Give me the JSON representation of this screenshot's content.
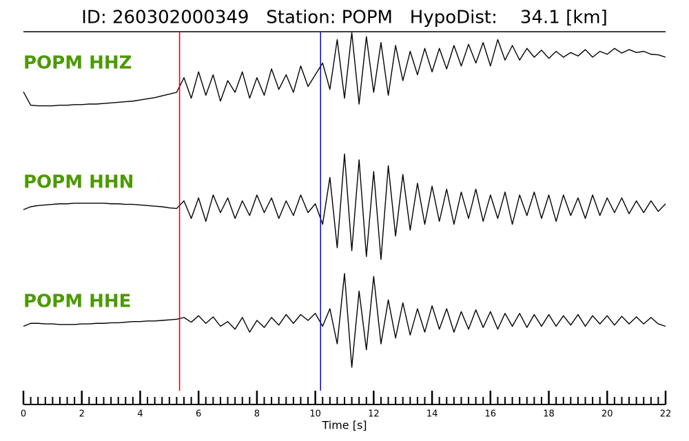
{
  "chart_data": {
    "type": "seismogram",
    "title": "ID: 260302000349   Station: POPM   HypoDist:    34.1 [km]",
    "xlabel": "Time [s]",
    "xlim": [
      0,
      22
    ],
    "xticks": [
      0,
      2,
      4,
      6,
      8,
      10,
      12,
      14,
      16,
      18,
      20,
      22
    ],
    "minor_xticks": [
      0,
      0.25,
      0.5,
      0.75,
      1,
      1.25,
      1.5,
      1.75,
      2,
      2.25,
      2.5,
      2.75,
      3,
      3.25,
      3.5,
      3.75,
      4,
      4.25,
      4.5,
      4.75,
      5,
      5.25,
      5.5,
      5.75,
      6,
      6.25,
      6.5,
      6.75,
      7,
      7.25,
      7.5,
      7.75,
      8,
      8.25,
      8.5,
      8.75,
      9,
      9.25,
      9.5,
      9.75,
      10,
      10.25,
      10.5,
      10.75,
      11,
      11.25,
      11.5,
      11.75,
      12,
      12.25,
      12.5,
      12.75,
      13,
      13.25,
      13.5,
      13.75,
      14,
      14.25,
      14.5,
      14.75,
      15,
      15.25,
      15.5,
      15.75,
      16,
      16.25,
      16.5,
      16.75,
      17,
      17.25,
      17.5,
      17.75,
      18,
      18.25,
      18.5,
      18.75,
      19,
      19.25,
      19.5,
      19.75,
      20,
      20.25,
      20.5,
      20.75,
      21,
      21.25,
      21.5,
      21.75,
      22
    ],
    "x": [
      0,
      0.25,
      0.5,
      0.75,
      1,
      1.25,
      1.5,
      1.75,
      2,
      2.25,
      2.5,
      2.75,
      3,
      3.25,
      3.5,
      3.75,
      4,
      4.25,
      4.5,
      4.75,
      5,
      5.25,
      5.5,
      5.75,
      6,
      6.25,
      6.5,
      6.75,
      7,
      7.25,
      7.5,
      7.75,
      8,
      8.25,
      8.5,
      8.75,
      9,
      9.25,
      9.5,
      9.75,
      10,
      10.25,
      10.5,
      10.75,
      11,
      11.25,
      11.5,
      11.75,
      12,
      12.25,
      12.5,
      12.75,
      13,
      13.25,
      13.5,
      13.75,
      14,
      14.25,
      14.5,
      14.75,
      15,
      15.25,
      15.5,
      15.75,
      16,
      16.25,
      16.5,
      16.75,
      17,
      17.25,
      17.5,
      17.75,
      18,
      18.25,
      18.5,
      18.75,
      19,
      19.25,
      19.5,
      19.75,
      20,
      20.25,
      20.5,
      20.75,
      21,
      21.25,
      21.5,
      21.75,
      22
    ],
    "ylim": [
      -1,
      1
    ],
    "label_color": "#4c9a00",
    "series": [
      {
        "name": "POPM HHZ",
        "color": "#000000",
        "values": [
          -0.39,
          -0.62,
          -0.63,
          -0.63,
          -0.63,
          -0.62,
          -0.62,
          -0.61,
          -0.61,
          -0.6,
          -0.6,
          -0.59,
          -0.58,
          -0.57,
          -0.56,
          -0.55,
          -0.53,
          -0.51,
          -0.49,
          -0.46,
          -0.43,
          -0.4,
          -0.15,
          -0.5,
          -0.05,
          -0.45,
          -0.1,
          -0.55,
          -0.2,
          -0.4,
          -0.05,
          -0.5,
          -0.15,
          -0.45,
          0.0,
          -0.35,
          -0.1,
          -0.4,
          0.05,
          -0.3,
          -0.1,
          0.1,
          -0.35,
          0.5,
          -0.5,
          0.62,
          -0.6,
          0.55,
          -0.4,
          0.45,
          -0.45,
          0.4,
          -0.2,
          0.3,
          -0.1,
          0.35,
          -0.05,
          0.35,
          0.0,
          0.4,
          0.05,
          0.42,
          0.1,
          0.45,
          0.05,
          0.5,
          0.15,
          0.4,
          0.15,
          0.35,
          0.2,
          0.32,
          0.18,
          0.3,
          0.2,
          0.28,
          0.22,
          0.33,
          0.2,
          0.3,
          0.25,
          0.35,
          0.27,
          0.33,
          0.28,
          0.3,
          0.25,
          0.24,
          0.2
        ]
      },
      {
        "name": "POPM HHN",
        "color": "#000000",
        "values": [
          -0.05,
          0.0,
          0.02,
          0.03,
          0.04,
          0.05,
          0.05,
          0.06,
          0.06,
          0.06,
          0.06,
          0.06,
          0.05,
          0.05,
          0.04,
          0.04,
          0.03,
          0.02,
          0.01,
          0.0,
          -0.02,
          -0.03,
          0.1,
          -0.2,
          0.15,
          -0.25,
          0.2,
          -0.1,
          0.15,
          -0.2,
          0.1,
          -0.15,
          0.2,
          -0.1,
          0.15,
          -0.2,
          0.1,
          -0.15,
          0.2,
          -0.1,
          0.05,
          -0.3,
          0.5,
          -0.7,
          0.9,
          -0.75,
          0.8,
          -0.85,
          0.6,
          -0.9,
          0.7,
          -0.5,
          0.55,
          -0.4,
          0.4,
          -0.3,
          0.35,
          -0.25,
          0.3,
          -0.3,
          0.25,
          -0.2,
          0.3,
          -0.25,
          0.2,
          -0.2,
          0.25,
          -0.3,
          0.2,
          -0.15,
          0.25,
          -0.2,
          0.2,
          -0.25,
          0.2,
          -0.15,
          0.15,
          -0.2,
          0.2,
          -0.15,
          0.15,
          -0.1,
          0.15,
          -0.12,
          0.1,
          -0.1,
          0.1,
          -0.08,
          0.05
        ]
      },
      {
        "name": "POPM HHE",
        "color": "#000000",
        "values": [
          -0.1,
          -0.05,
          -0.05,
          -0.06,
          -0.06,
          -0.07,
          -0.07,
          -0.07,
          -0.06,
          -0.06,
          -0.05,
          -0.05,
          -0.04,
          -0.04,
          -0.03,
          -0.02,
          -0.02,
          -0.01,
          -0.01,
          0.0,
          0.01,
          0.02,
          0.05,
          -0.03,
          0.08,
          -0.05,
          0.06,
          -0.1,
          -0.02,
          -0.15,
          0.05,
          -0.2,
          0.0,
          -0.12,
          0.05,
          -0.08,
          0.1,
          -0.05,
          0.1,
          0.0,
          0.12,
          -0.1,
          0.2,
          -0.4,
          0.8,
          -0.8,
          0.5,
          -0.5,
          0.75,
          -0.4,
          0.35,
          -0.3,
          0.3,
          -0.25,
          0.2,
          -0.2,
          0.25,
          -0.15,
          0.2,
          -0.2,
          0.15,
          -0.15,
          0.18,
          -0.12,
          0.15,
          -0.15,
          0.12,
          -0.1,
          0.12,
          -0.12,
          0.1,
          -0.1,
          0.1,
          -0.1,
          0.08,
          -0.08,
          0.1,
          -0.1,
          0.08,
          -0.06,
          0.08,
          -0.08,
          0.07,
          -0.06,
          0.06,
          -0.06,
          0.05,
          -0.06,
          -0.1
        ]
      }
    ],
    "markers": [
      {
        "x": 5.35,
        "color": "#e00000"
      },
      {
        "x": 10.18,
        "color": "#0000ff"
      }
    ]
  }
}
